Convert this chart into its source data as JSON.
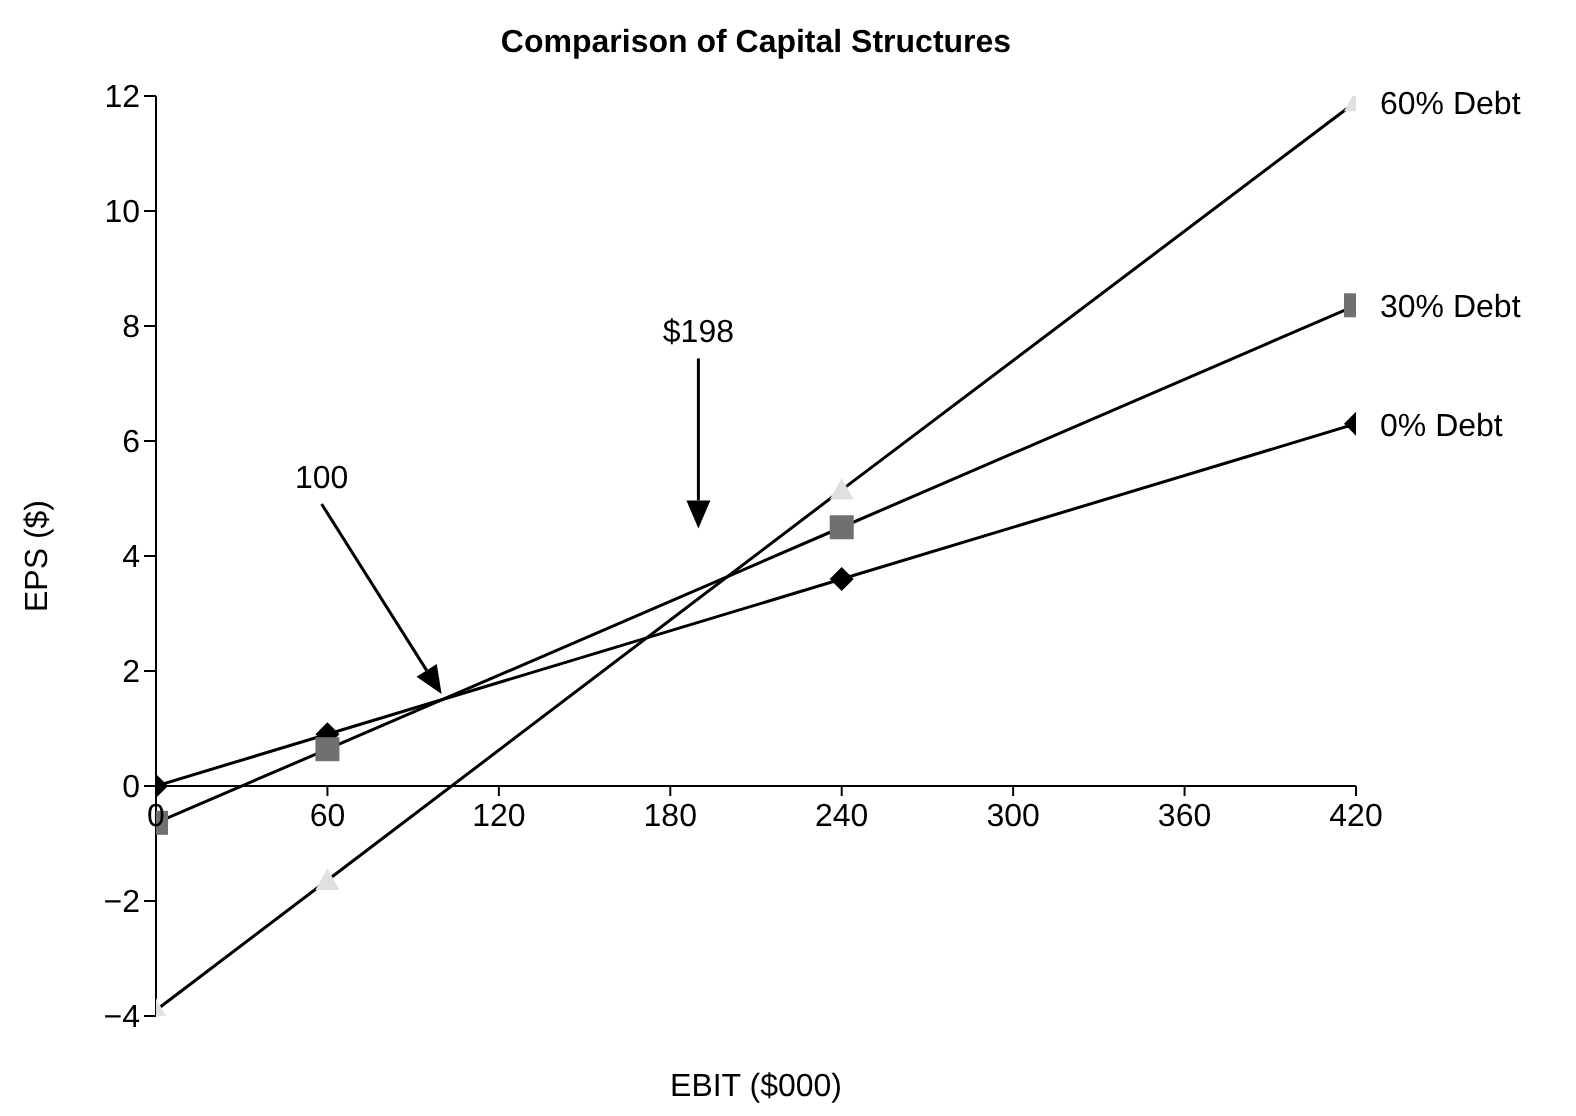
{
  "chart_data": {
    "type": "line",
    "title": "Comparison of Capital Structures",
    "xlabel": "EBIT ($000)",
    "ylabel": "EPS ($)",
    "x": [
      0,
      60,
      240,
      420
    ],
    "series": [
      {
        "name": "0% Debt",
        "color": "#000000",
        "marker": "diamond",
        "values": [
          0,
          0.9,
          3.6,
          6.3
        ]
      },
      {
        "name": "30% Debt",
        "color": "#707070",
        "marker": "square",
        "values": [
          -0.64,
          0.64,
          4.5,
          8.36
        ]
      },
      {
        "name": "60% Debt",
        "color": "#e0e0e0",
        "marker": "triangle",
        "values": [
          -3.9,
          -1.64,
          5.15,
          11.9
        ]
      }
    ],
    "xlim": [
      0,
      420
    ],
    "xticks": [
      0,
      60,
      120,
      180,
      240,
      300,
      360,
      420
    ],
    "ylim": [
      -4,
      12
    ],
    "yticks": [
      -4,
      -2,
      0,
      2,
      4,
      6,
      8,
      10,
      12
    ],
    "grid": false,
    "legend": false,
    "annotations": [
      "100",
      "$198"
    ]
  }
}
